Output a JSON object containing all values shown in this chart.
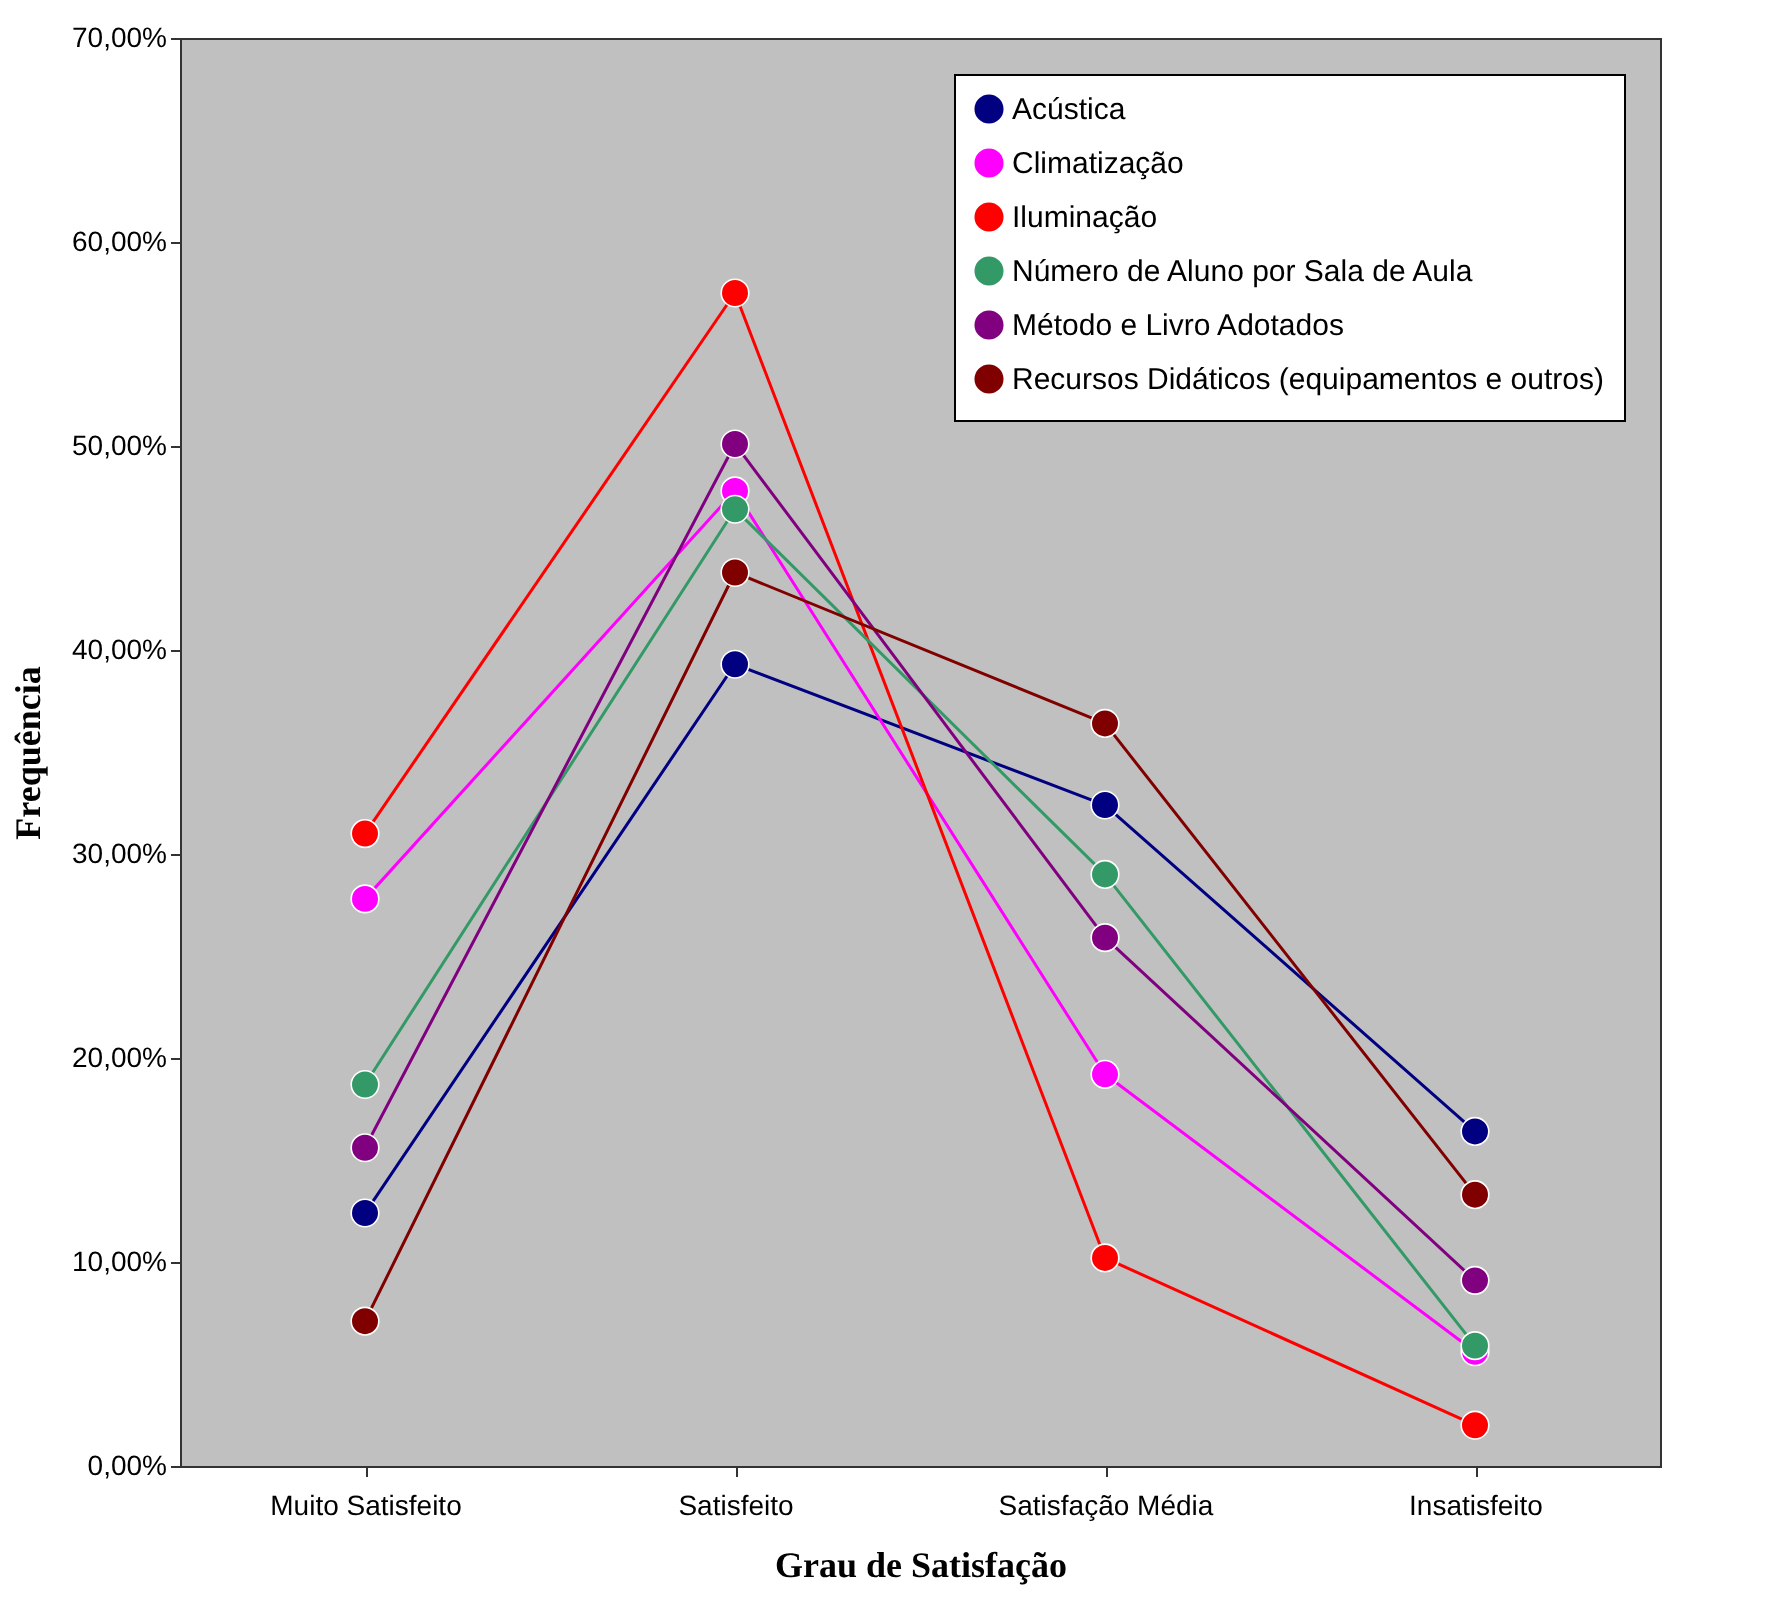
{
  "chart_data": {
    "type": "line",
    "xlabel": "Grau de Satisfação",
    "ylabel": "Frequência",
    "categories": [
      "Muito Satisfeito",
      "Satisfeito",
      "Satisfação Média",
      "Insatisfeito"
    ],
    "series": [
      {
        "name": "Acústica",
        "color": "#000080",
        "values": [
          12.4,
          39.3,
          32.4,
          16.4
        ]
      },
      {
        "name": "Climatização",
        "color": "#ff00ff",
        "values": [
          27.8,
          47.8,
          19.2,
          5.6
        ]
      },
      {
        "name": "Iluminação",
        "color": "#ff0000",
        "values": [
          31.0,
          57.5,
          10.2,
          2.0
        ]
      },
      {
        "name": "Número de Aluno por Sala de Aula",
        "color": "#339966",
        "values": [
          18.7,
          46.9,
          29.0,
          5.9
        ]
      },
      {
        "name": "Método e Livro Adotados",
        "color": "#800080",
        "values": [
          15.6,
          50.1,
          25.9,
          9.1
        ]
      },
      {
        "name": "Recursos Didáticos (equipamentos e outros)",
        "color": "#800000",
        "values": [
          7.1,
          43.8,
          36.4,
          13.3
        ]
      }
    ],
    "ylim": [
      0,
      70
    ],
    "yticks": [
      {
        "value": 0,
        "label": "0,00%"
      },
      {
        "value": 10,
        "label": "10,00%"
      },
      {
        "value": 20,
        "label": "20,00%"
      },
      {
        "value": 30,
        "label": "30,00%"
      },
      {
        "value": 40,
        "label": "40,00%"
      },
      {
        "value": 50,
        "label": "50,00%"
      },
      {
        "value": 60,
        "label": "60,00%"
      },
      {
        "value": 70,
        "label": "70,00%"
      }
    ],
    "grid": false,
    "legend": "top right",
    "marker": "circle",
    "line_style": "solid"
  }
}
